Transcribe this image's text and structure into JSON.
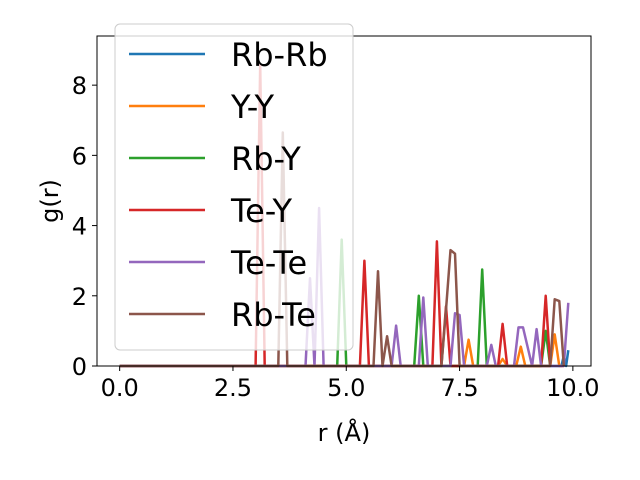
{
  "chart_data": {
    "type": "line",
    "title": "",
    "xlabel": "r (Å)",
    "ylabel": "g(r)",
    "xlim": [
      -0.5,
      10.4
    ],
    "ylim": [
      0,
      9.4
    ],
    "xticks": [
      0.0,
      2.5,
      5.0,
      7.5,
      10.0
    ],
    "xtick_labels": [
      "0.0",
      "2.5",
      "5.0",
      "7.5",
      "10.0"
    ],
    "yticks": [
      0,
      2,
      4,
      6,
      8
    ],
    "ytick_labels": [
      "0",
      "2",
      "4",
      "6",
      "8"
    ],
    "grid": false,
    "legend_position": "upper-left",
    "series": [
      {
        "name": "Rb-Rb",
        "color": "#1f77b4",
        "x": [
          0,
          9.75,
          9.8,
          9.85,
          9.9
        ],
        "y": [
          0,
          0,
          0.3,
          0.0,
          0.45
        ]
      },
      {
        "name": "Y-Y",
        "color": "#ff7f0e",
        "x": [
          0,
          7.6,
          7.7,
          7.8,
          8.35,
          8.45,
          8.55,
          8.75,
          8.85,
          8.95,
          9.5,
          9.6,
          9.7,
          9.8
        ],
        "y": [
          0,
          0,
          0.75,
          0,
          0,
          0.2,
          0,
          0,
          0.55,
          0,
          0,
          0.9,
          0,
          0
        ]
      },
      {
        "name": "Rb-Y",
        "color": "#2ca02c",
        "x": [
          0,
          4.8,
          4.9,
          5.0,
          6.5,
          6.6,
          6.7,
          7.9,
          8.0,
          8.1,
          9.3,
          9.4,
          9.5
        ],
        "y": [
          0,
          0,
          3.6,
          0,
          0,
          2.0,
          0,
          0,
          2.75,
          0,
          0,
          1.0,
          0
        ]
      },
      {
        "name": "Te-Y",
        "color": "#d62728",
        "x": [
          0,
          3.0,
          3.1,
          3.2,
          5.3,
          5.4,
          5.5,
          6.9,
          7.0,
          7.1,
          7.2,
          7.3,
          8.35,
          8.45,
          8.55,
          9.3,
          9.4,
          9.5
        ],
        "y": [
          0,
          0,
          8.6,
          0,
          0,
          3.0,
          0,
          0,
          3.55,
          0,
          1.7,
          0,
          0,
          1.2,
          0,
          0,
          2.0,
          0
        ]
      },
      {
        "name": "Te-Te",
        "color": "#9467bd",
        "x": [
          0,
          4.1,
          4.2,
          4.3,
          4.4,
          4.5,
          4.6,
          6.0,
          6.1,
          6.2,
          6.6,
          6.7,
          6.8,
          7.3,
          7.4,
          7.5,
          7.6,
          8.1,
          8.2,
          8.3,
          8.7,
          8.8,
          8.9,
          9.1,
          9.2,
          9.3,
          9.8,
          9.9
        ],
        "y": [
          0,
          0,
          2.5,
          0,
          4.5,
          0,
          0,
          0,
          1.15,
          0,
          0,
          1.95,
          0,
          0,
          1.5,
          1.45,
          0,
          0,
          0.6,
          0,
          0,
          1.1,
          1.1,
          0,
          1.05,
          0,
          0,
          1.8
        ]
      },
      {
        "name": "Rb-Te",
        "color": "#8c564b",
        "x": [
          0,
          3.5,
          3.6,
          3.7,
          5.6,
          5.7,
          5.8,
          5.9,
          6.0,
          7.1,
          7.2,
          7.3,
          7.4,
          7.5,
          9.5,
          9.6,
          9.7,
          9.8
        ],
        "y": [
          0,
          0,
          6.65,
          0,
          0,
          2.7,
          0,
          0.85,
          0,
          0,
          1.6,
          3.3,
          3.2,
          0,
          0,
          1.9,
          1.85,
          0
        ]
      }
    ]
  }
}
